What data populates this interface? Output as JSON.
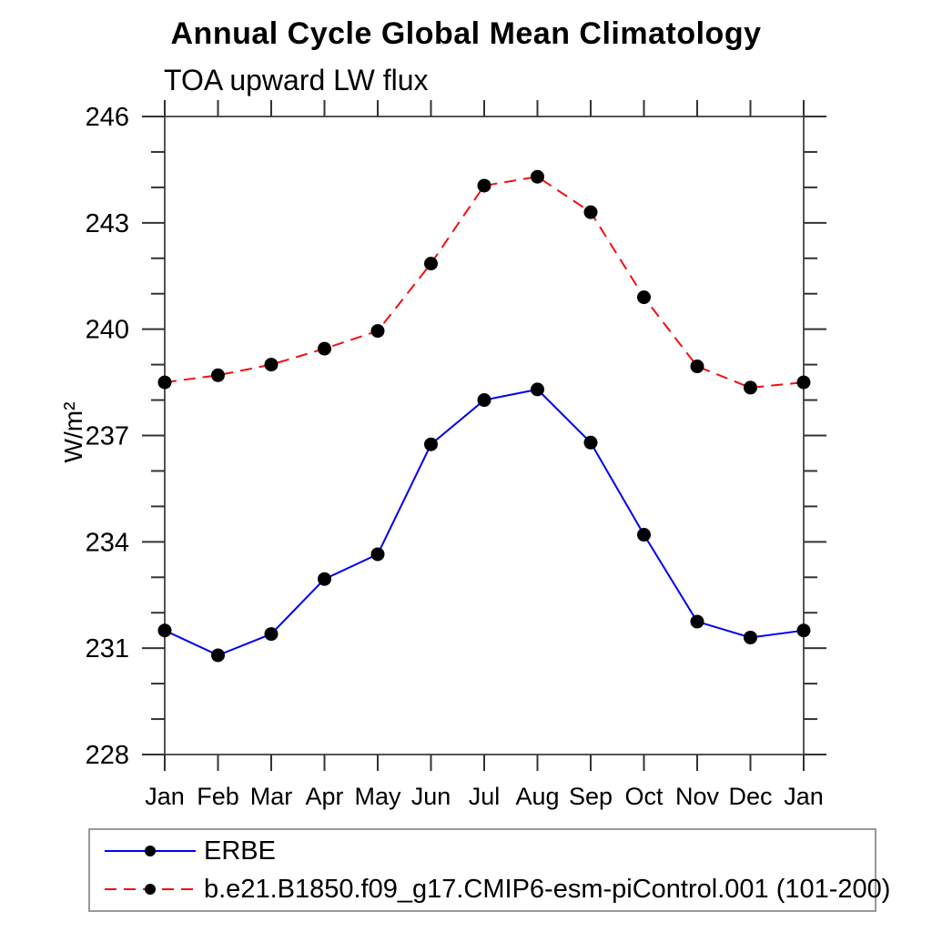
{
  "title": "Annual Cycle Global Mean Climatology",
  "subtitle": "TOA upward LW flux",
  "ylabel": "W/m²",
  "chart_data": {
    "type": "line",
    "categories": [
      "Jan",
      "Feb",
      "Mar",
      "Apr",
      "May",
      "Jun",
      "Jul",
      "Aug",
      "Sep",
      "Oct",
      "Nov",
      "Dec",
      "Jan"
    ],
    "series": [
      {
        "name": "ERBE",
        "color": "#0000ee",
        "line_style": "solid",
        "marker": "filled-circle",
        "marker_color": "#000000",
        "values": [
          231.5,
          230.8,
          231.4,
          232.95,
          233.65,
          236.75,
          238.0,
          238.3,
          236.8,
          234.2,
          231.75,
          231.3,
          231.5
        ]
      },
      {
        "name": "b.e21.B1850.f09_g17.CMIP6-esm-piControl.001 (101-200)",
        "color": "#f01010",
        "line_style": "dashed",
        "marker": "filled-circle",
        "marker_color": "#000000",
        "values": [
          238.5,
          238.7,
          239.0,
          239.45,
          239.95,
          241.85,
          244.05,
          244.3,
          243.3,
          240.9,
          238.95,
          238.35,
          238.5
        ]
      }
    ],
    "ylim": [
      228,
      246
    ],
    "ytick_major": [
      228,
      231,
      234,
      237,
      240,
      243,
      246
    ],
    "ytick_minor_step": 1,
    "xlabel": "",
    "ylabel": "W/m²",
    "grid": "off",
    "legend_position": "bottom-left-box"
  }
}
